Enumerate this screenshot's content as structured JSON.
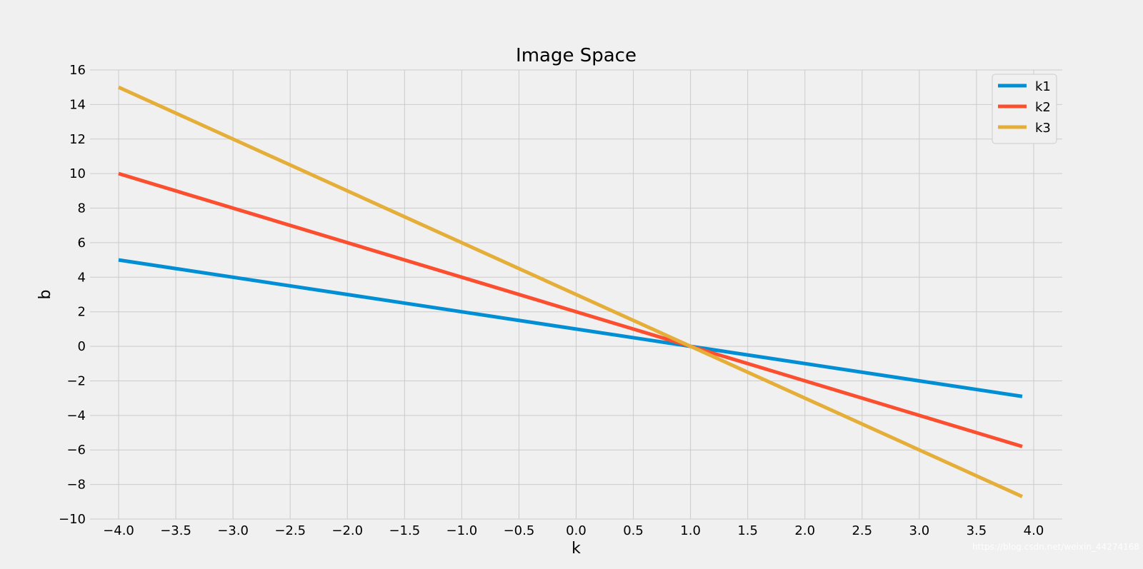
{
  "chart_data": {
    "type": "line",
    "title": "Image Space",
    "xlabel": "k",
    "ylabel": "b",
    "xlim": [
      -4.25,
      4.25
    ],
    "ylim": [
      -10,
      16
    ],
    "xticks": [
      -4.0,
      -3.5,
      -3.0,
      -2.5,
      -2.0,
      -1.5,
      -1.0,
      -0.5,
      0.0,
      0.5,
      1.0,
      1.5,
      2.0,
      2.5,
      3.0,
      3.5,
      4.0
    ],
    "xtick_labels": [
      "−4.0",
      "−3.5",
      "−3.0",
      "−2.5",
      "−2.0",
      "−1.5",
      "−1.0",
      "−0.5",
      "0.0",
      "0.5",
      "1.0",
      "1.5",
      "2.0",
      "2.5",
      "3.0",
      "3.5",
      "4.0"
    ],
    "yticks": [
      -10,
      -8,
      -6,
      -4,
      -2,
      0,
      2,
      4,
      6,
      8,
      10,
      12,
      14,
      16
    ],
    "ytick_labels": [
      "−10",
      "−8",
      "−6",
      "−4",
      "−2",
      "0",
      "2",
      "4",
      "6",
      "8",
      "10",
      "12",
      "14",
      "16"
    ],
    "grid": true,
    "legend_position": "top-right",
    "series": [
      {
        "name": "k1",
        "color": "#008fd5",
        "x": [
          -4.0,
          3.9
        ],
        "y": [
          5.0,
          -2.9
        ]
      },
      {
        "name": "k2",
        "color": "#fc4f30",
        "x": [
          -4.0,
          3.9
        ],
        "y": [
          10.0,
          -5.8
        ]
      },
      {
        "name": "k3",
        "color": "#e5ae38",
        "x": [
          -4.0,
          3.9
        ],
        "y": [
          15.0,
          -8.7
        ]
      }
    ]
  },
  "watermark": "https://blog.csdn.net/weixin_44274168"
}
